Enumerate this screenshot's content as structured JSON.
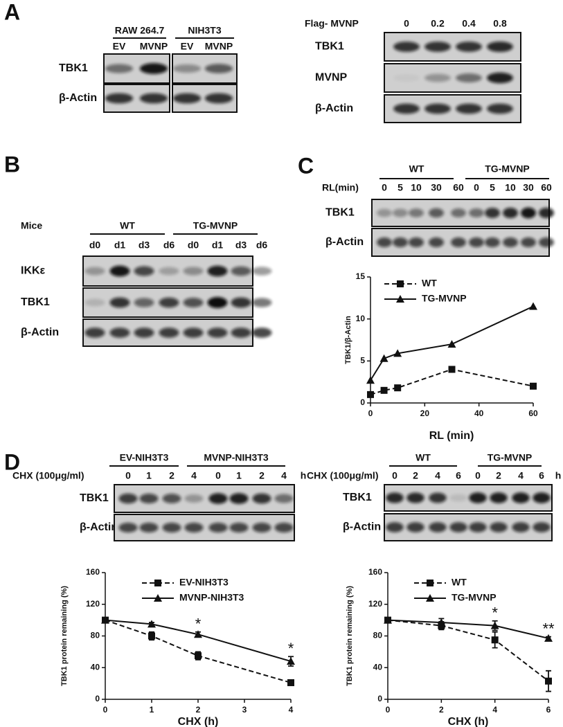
{
  "panels": {
    "a": "A",
    "b": "B",
    "c": "C",
    "d": "D"
  },
  "blots": [
    {
      "groups": [
        "RAW 264.7",
        "NIH3T3"
      ],
      "lanes": [
        "EV",
        "MVNP",
        "EV",
        "MVNP"
      ],
      "rows": [
        "TBK1",
        "β-Actin"
      ]
    },
    {
      "title": "Flag- MVNP",
      "lanes": [
        "0",
        "0.2",
        "0.4",
        "0.8"
      ],
      "rows": [
        "TBK1",
        "MVNP",
        "β-Actin"
      ]
    },
    {
      "title": "Mice",
      "groups": [
        "WT",
        "TG-MVNP"
      ],
      "lanes": [
        "d0",
        "d1",
        "d3",
        "d6",
        "d0",
        "d1",
        "d3",
        "d6"
      ],
      "rows": [
        "IKKε",
        "TBK1",
        "β-Actin"
      ]
    },
    {
      "title": "RL(min)",
      "groups": [
        "WT",
        "TG-MVNP"
      ],
      "lanes": [
        "0",
        "5",
        "10",
        "30",
        "60",
        "0",
        "5",
        "10",
        "30",
        "60"
      ],
      "rows": [
        "TBK1",
        "β-Actin"
      ]
    },
    {
      "title": "CHX (100μg/ml)",
      "groups": [
        "EV-NIH3T3",
        "MVNP-NIH3T3"
      ],
      "lanes": [
        "0",
        "1",
        "2",
        "4",
        "0",
        "1",
        "2",
        "4"
      ],
      "unit": "h",
      "rows": [
        "TBK1",
        "β-Actin"
      ]
    },
    {
      "title": "CHX (100μg/ml)",
      "groups": [
        "WT",
        "TG-MVNP"
      ],
      "lanes": [
        "0",
        "2",
        "4",
        "6",
        "0",
        "2",
        "4",
        "6"
      ],
      "unit": "h",
      "rows": [
        "TBK1",
        "β-Actin"
      ]
    }
  ],
  "chart_data": [
    {
      "type": "line",
      "xlabel": "RL (min)",
      "ylabel": "TBK1/β-Actin",
      "x": [
        0,
        5,
        10,
        30,
        60
      ],
      "series": [
        {
          "name": "WT",
          "color": "#111111",
          "dashed": true,
          "marker": "square",
          "values": [
            1,
            1.5,
            1.8,
            4,
            2
          ]
        },
        {
          "name": "TG-MVNP",
          "color": "#111111",
          "dashed": false,
          "marker": "triangle",
          "values": [
            2.7,
            5.3,
            5.9,
            7,
            11.5
          ]
        }
      ],
      "xlim": [
        0,
        60
      ],
      "xticks": [
        0,
        20,
        40,
        60
      ],
      "ylim": [
        0,
        15
      ],
      "yticks": [
        0,
        5,
        10,
        15
      ]
    },
    {
      "type": "line",
      "xlabel": "CHX (h)",
      "ylabel": "TBK1 protein remaining (%)",
      "x": [
        0,
        1,
        2,
        4
      ],
      "series": [
        {
          "name": "EV-NIH3T3",
          "color": "#111111",
          "dashed": true,
          "marker": "square",
          "values": [
            100,
            80,
            55,
            21
          ],
          "errors": [
            0,
            5,
            5,
            2
          ]
        },
        {
          "name": "MVNP-NIH3T3",
          "color": "#111111",
          "dashed": false,
          "marker": "triangle",
          "values": [
            100,
            95,
            82,
            48
          ],
          "errors": [
            0,
            2,
            3,
            6
          ]
        }
      ],
      "xlim": [
        0,
        4
      ],
      "xticks": [
        0,
        1,
        2,
        3,
        4
      ],
      "ylim": [
        0,
        160
      ],
      "yticks": [
        0,
        40,
        80,
        120,
        160
      ],
      "annotations": [
        "*",
        "*"
      ]
    },
    {
      "type": "line",
      "xlabel": "CHX (h)",
      "ylabel": "TBK1 protein remaining (%)",
      "x": [
        0,
        2,
        4,
        6
      ],
      "series": [
        {
          "name": "WT",
          "color": "#111111",
          "dashed": true,
          "marker": "square",
          "values": [
            100,
            93,
            75,
            23
          ],
          "errors": [
            0,
            5,
            10,
            13
          ]
        },
        {
          "name": "TG-MVNP",
          "color": "#111111",
          "dashed": false,
          "marker": "triangle",
          "values": [
            100,
            97,
            93,
            77
          ],
          "errors": [
            0,
            5,
            6,
            2
          ]
        }
      ],
      "xlim": [
        0,
        6
      ],
      "xticks": [
        0,
        2,
        4,
        6
      ],
      "ylim": [
        0,
        160
      ],
      "yticks": [
        0,
        40,
        80,
        120,
        160
      ],
      "annotations": [
        "*",
        "**"
      ]
    }
  ]
}
